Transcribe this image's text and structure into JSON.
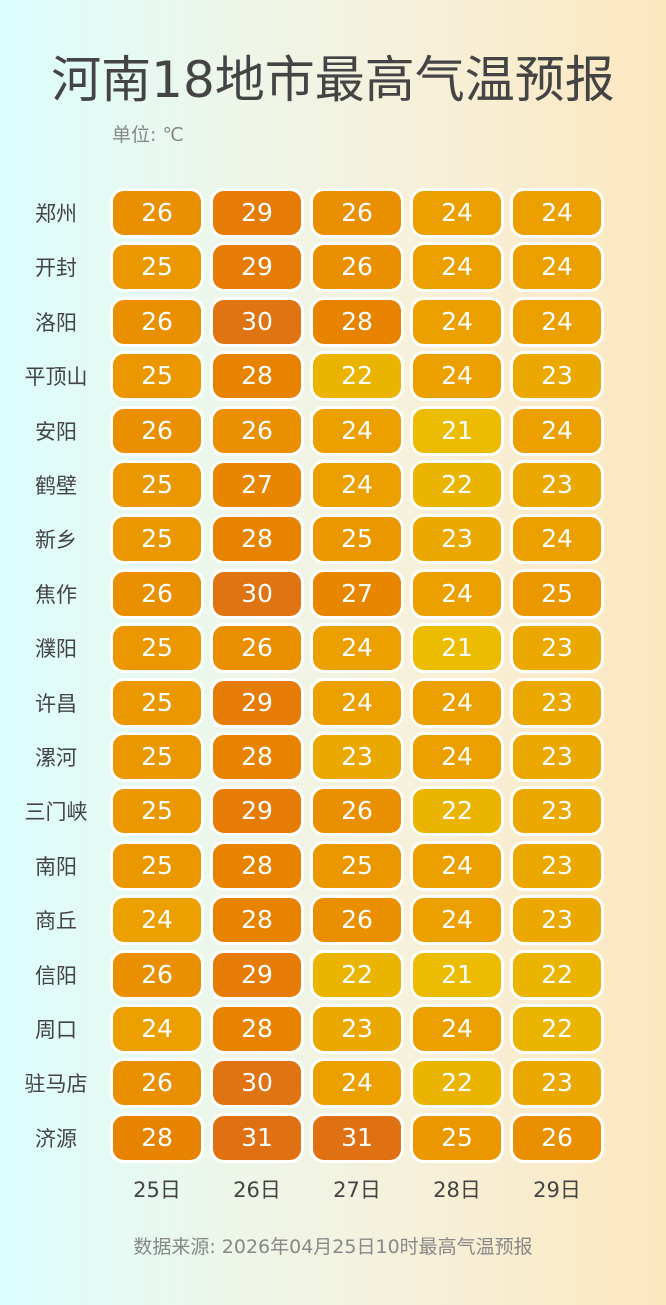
{
  "title": "河南18地市最高气温预报",
  "unit": "单位: ℃",
  "source": "数据来源: 2026年04月25日10时最高气温预报",
  "chart_data": {
    "type": "heatmap",
    "title": "河南18地市最高气温预报",
    "columns": [
      "25日",
      "26日",
      "27日",
      "28日",
      "29日"
    ],
    "rows": [
      "郑州",
      "开封",
      "洛阳",
      "平顶山",
      "安阳",
      "鹤壁",
      "新乡",
      "焦作",
      "濮阳",
      "许昌",
      "漯河",
      "三门峡",
      "南阳",
      "商丘",
      "信阳",
      "周口",
      "驻马店",
      "济源"
    ],
    "values": [
      [
        26,
        29,
        26,
        24,
        24
      ],
      [
        25,
        29,
        26,
        24,
        24
      ],
      [
        26,
        30,
        28,
        24,
        24
      ],
      [
        25,
        28,
        22,
        24,
        23
      ],
      [
        26,
        26,
        24,
        21,
        24
      ],
      [
        25,
        27,
        24,
        22,
        23
      ],
      [
        25,
        28,
        25,
        23,
        24
      ],
      [
        26,
        30,
        27,
        24,
        25
      ],
      [
        25,
        26,
        24,
        21,
        23
      ],
      [
        25,
        29,
        24,
        24,
        23
      ],
      [
        25,
        28,
        23,
        24,
        23
      ],
      [
        25,
        29,
        26,
        22,
        23
      ],
      [
        25,
        28,
        25,
        24,
        23
      ],
      [
        24,
        28,
        26,
        24,
        23
      ],
      [
        26,
        29,
        22,
        21,
        22
      ],
      [
        24,
        28,
        23,
        24,
        22
      ],
      [
        26,
        30,
        24,
        22,
        23
      ],
      [
        28,
        31,
        31,
        25,
        26
      ]
    ],
    "color_scale": {
      "21": "#ebbc00",
      "22": "#ebb400",
      "23": "#eba800",
      "24": "#eba000",
      "25": "#eb9800",
      "26": "#ea8f00",
      "27": "#e88600",
      "28": "#e88300",
      "29": "#e67b05",
      "30": "#e07412",
      "31": "#e07112"
    }
  }
}
